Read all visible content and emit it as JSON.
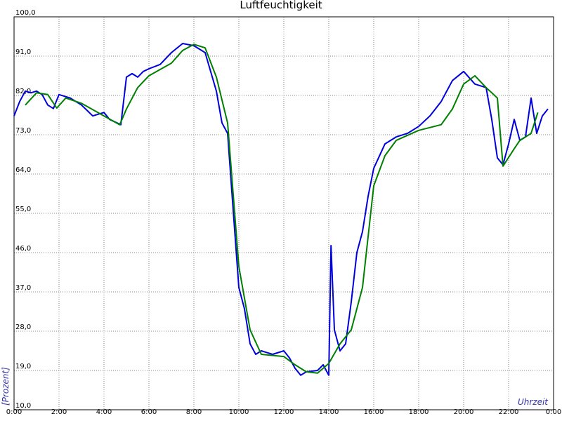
{
  "chart_data": {
    "type": "line",
    "title": "Luftfeuchtigkeit",
    "ylabel": "[Prozent]",
    "xlabel": "Uhrzeit",
    "xlim": [
      0,
      24
    ],
    "ylim": [
      10,
      100
    ],
    "grid": true,
    "xticks": [
      {
        "value": 0,
        "label": "0:00"
      },
      {
        "value": 2,
        "label": "2:00"
      },
      {
        "value": 4,
        "label": "4:00"
      },
      {
        "value": 6,
        "label": "6:00"
      },
      {
        "value": 8,
        "label": "8:00"
      },
      {
        "value": 10,
        "label": "10:00"
      },
      {
        "value": 12,
        "label": "12:00"
      },
      {
        "value": 14,
        "label": "14:00"
      },
      {
        "value": 16,
        "label": "16:00"
      },
      {
        "value": 18,
        "label": "18:00"
      },
      {
        "value": 20,
        "label": "20:00"
      },
      {
        "value": 22,
        "label": "22:00"
      },
      {
        "value": 24,
        "label": "0:00"
      }
    ],
    "yticks": [
      {
        "value": 10,
        "label": "10,0"
      },
      {
        "value": 19,
        "label": "19,0"
      },
      {
        "value": 28,
        "label": "28,0"
      },
      {
        "value": 37,
        "label": "37,0"
      },
      {
        "value": 46,
        "label": "46,0"
      },
      {
        "value": 55,
        "label": "55,0"
      },
      {
        "value": 64,
        "label": "64,0"
      },
      {
        "value": 73,
        "label": "73,0"
      },
      {
        "value": 82,
        "label": "82,0"
      },
      {
        "value": 91,
        "label": "91,0"
      },
      {
        "value": 100,
        "label": "100,0"
      }
    ],
    "series": [
      {
        "color": "#0000dd",
        "x": [
          0,
          0.25,
          0.5,
          0.75,
          1,
          1.25,
          1.5,
          1.75,
          2,
          2.5,
          3,
          3.5,
          4,
          4.25,
          4.75,
          5,
          5.25,
          5.5,
          5.75,
          6,
          6.5,
          7,
          7.5,
          8,
          8.5,
          9,
          9.25,
          9.5,
          9.75,
          10,
          10.25,
          10.5,
          10.75,
          11,
          11.5,
          12,
          12.25,
          12.5,
          12.75,
          13,
          13.5,
          13.75,
          14,
          14.1,
          14.25,
          14.5,
          14.75,
          15,
          15.25,
          15.5,
          15.75,
          16,
          16.5,
          17,
          17.5,
          18,
          18.5,
          19,
          19.5,
          20,
          20.5,
          21,
          21.25,
          21.5,
          21.75,
          22,
          22.25,
          22.5,
          22.75,
          23,
          23.25,
          23.5,
          23.75
        ],
        "values": [
          77.3,
          80.6,
          83.0,
          82.6,
          83.0,
          82.2,
          79.8,
          79.0,
          82.2,
          81.4,
          79.8,
          77.3,
          78.1,
          76.5,
          75.3,
          86.2,
          87.0,
          86.2,
          87.5,
          88.1,
          89.1,
          91.8,
          93.9,
          93.4,
          91.8,
          83.0,
          75.7,
          73.3,
          55.6,
          38.0,
          33.1,
          25.1,
          22.7,
          23.5,
          22.7,
          23.5,
          21.9,
          19.5,
          17.9,
          18.7,
          19.0,
          20.3,
          17.9,
          47.6,
          28.3,
          23.5,
          25.1,
          34.7,
          46.0,
          50.8,
          58.9,
          65.3,
          70.9,
          72.5,
          73.3,
          74.9,
          77.3,
          80.6,
          85.4,
          87.5,
          84.6,
          83.8,
          76.5,
          67.7,
          66.1,
          70.9,
          76.5,
          71.7,
          72.5,
          81.4,
          73.3,
          77.3,
          78.9
        ]
      },
      {
        "color": "#008000",
        "x": [
          0.5,
          1,
          1.5,
          1.9,
          2.3,
          3,
          4,
          4.7,
          5,
          5.5,
          6,
          7,
          7.5,
          8,
          8.5,
          9,
          9.5,
          10,
          10.5,
          11,
          12,
          12.5,
          13,
          13.5,
          14,
          14.5,
          15,
          15.5,
          16,
          16.5,
          17,
          18,
          19,
          19.5,
          20,
          20.5,
          21,
          21.5,
          21.75,
          22.25,
          22.5,
          23,
          23.3
        ],
        "values": [
          79.8,
          82.6,
          82.2,
          79.1,
          81.4,
          80.2,
          77.3,
          75.3,
          78.9,
          83.8,
          86.5,
          89.4,
          92.3,
          93.7,
          92.9,
          86.2,
          75.7,
          42.8,
          28.3,
          22.7,
          22.2,
          20.3,
          18.7,
          18.4,
          20.6,
          25.1,
          28.3,
          38.0,
          61.3,
          68.2,
          71.7,
          74.0,
          75.3,
          78.9,
          84.6,
          86.5,
          83.8,
          81.4,
          65.8,
          69.8,
          71.7,
          73.3,
          78.1
        ]
      }
    ]
  }
}
